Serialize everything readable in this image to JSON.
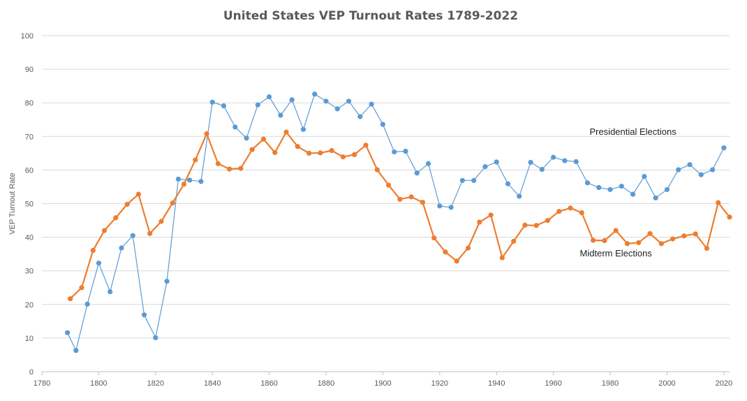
{
  "chart_data": {
    "type": "line",
    "title": "United States VEP Turnout Rates 1789-2022",
    "ylabel": "VEP Turnout Rate",
    "xlabel": "",
    "xlim": [
      1780,
      2022
    ],
    "ylim": [
      0,
      100
    ],
    "x_ticks": [
      1780,
      1800,
      1820,
      1840,
      1860,
      1880,
      1900,
      1920,
      1940,
      1960,
      1980,
      2000,
      2020
    ],
    "y_ticks": [
      0,
      10,
      20,
      30,
      40,
      50,
      60,
      70,
      80,
      90,
      100
    ],
    "grid": true,
    "legend": "none",
    "series": [
      {
        "key": "presidential",
        "color": "#5b9bd5",
        "x": [
          1789,
          1792,
          1796,
          1800,
          1804,
          1808,
          1812,
          1816,
          1820,
          1824,
          1828,
          1832,
          1836,
          1840,
          1844,
          1848,
          1852,
          1856,
          1860,
          1864,
          1868,
          1872,
          1876,
          1880,
          1884,
          1888,
          1892,
          1896,
          1900,
          1904,
          1908,
          1912,
          1916,
          1920,
          1924,
          1928,
          1932,
          1936,
          1940,
          1944,
          1948,
          1952,
          1956,
          1960,
          1964,
          1968,
          1972,
          1976,
          1980,
          1984,
          1988,
          1992,
          1996,
          2000,
          2004,
          2008,
          2012,
          2016,
          2020
        ],
        "y": [
          11.6,
          6.3,
          20.1,
          32.3,
          23.8,
          36.8,
          40.5,
          16.9,
          10.1,
          26.9,
          57.3,
          57.0,
          56.6,
          80.2,
          79.1,
          72.8,
          69.5,
          79.4,
          81.8,
          76.3,
          80.9,
          72.1,
          82.6,
          80.5,
          78.2,
          80.5,
          75.9,
          79.6,
          73.6,
          65.4,
          65.6,
          59.1,
          61.9,
          49.3,
          48.9,
          56.9,
          56.9,
          61.0,
          62.4,
          55.9,
          52.2,
          62.3,
          60.2,
          63.8,
          62.8,
          62.5,
          56.2,
          54.8,
          54.2,
          55.2,
          52.8,
          58.1,
          51.7,
          54.2,
          60.1,
          61.6,
          58.6,
          60.1,
          66.6
        ]
      },
      {
        "key": "midterm",
        "color": "#ed7d31",
        "x": [
          1790,
          1794,
          1798,
          1802,
          1806,
          1810,
          1814,
          1818,
          1822,
          1826,
          1830,
          1834,
          1838,
          1842,
          1846,
          1850,
          1854,
          1858,
          1862,
          1866,
          1870,
          1874,
          1878,
          1882,
          1886,
          1890,
          1894,
          1898,
          1902,
          1906,
          1910,
          1914,
          1918,
          1922,
          1926,
          1930,
          1934,
          1938,
          1942,
          1946,
          1950,
          1954,
          1958,
          1962,
          1966,
          1970,
          1974,
          1978,
          1982,
          1986,
          1990,
          1994,
          1998,
          2002,
          2006,
          2010,
          2014,
          2018,
          2022
        ],
        "y": [
          21.7,
          25.0,
          36.1,
          42.0,
          45.8,
          49.8,
          52.8,
          41.1,
          44.7,
          50.2,
          55.8,
          63.0,
          70.8,
          61.9,
          60.3,
          60.5,
          66.1,
          69.2,
          65.2,
          71.3,
          67.0,
          65.0,
          65.1,
          65.8,
          63.9,
          64.6,
          67.4,
          60.1,
          55.5,
          51.3,
          52.0,
          50.4,
          39.8,
          35.6,
          32.9,
          36.8,
          44.5,
          46.6,
          33.9,
          38.8,
          43.6,
          43.5,
          45.0,
          47.7,
          48.7,
          47.3,
          39.1,
          39.0,
          42.0,
          38.1,
          38.4,
          41.1,
          38.1,
          39.5,
          40.4,
          41.0,
          36.7,
          50.3,
          46.0
        ]
      }
    ],
    "annotations": [
      {
        "series": "presidential",
        "text": "Presidential Elections",
        "at": [
          1988,
          70.5
        ]
      },
      {
        "series": "midterm",
        "text": "Midterm Elections",
        "at": [
          1982,
          34.3
        ]
      }
    ]
  }
}
